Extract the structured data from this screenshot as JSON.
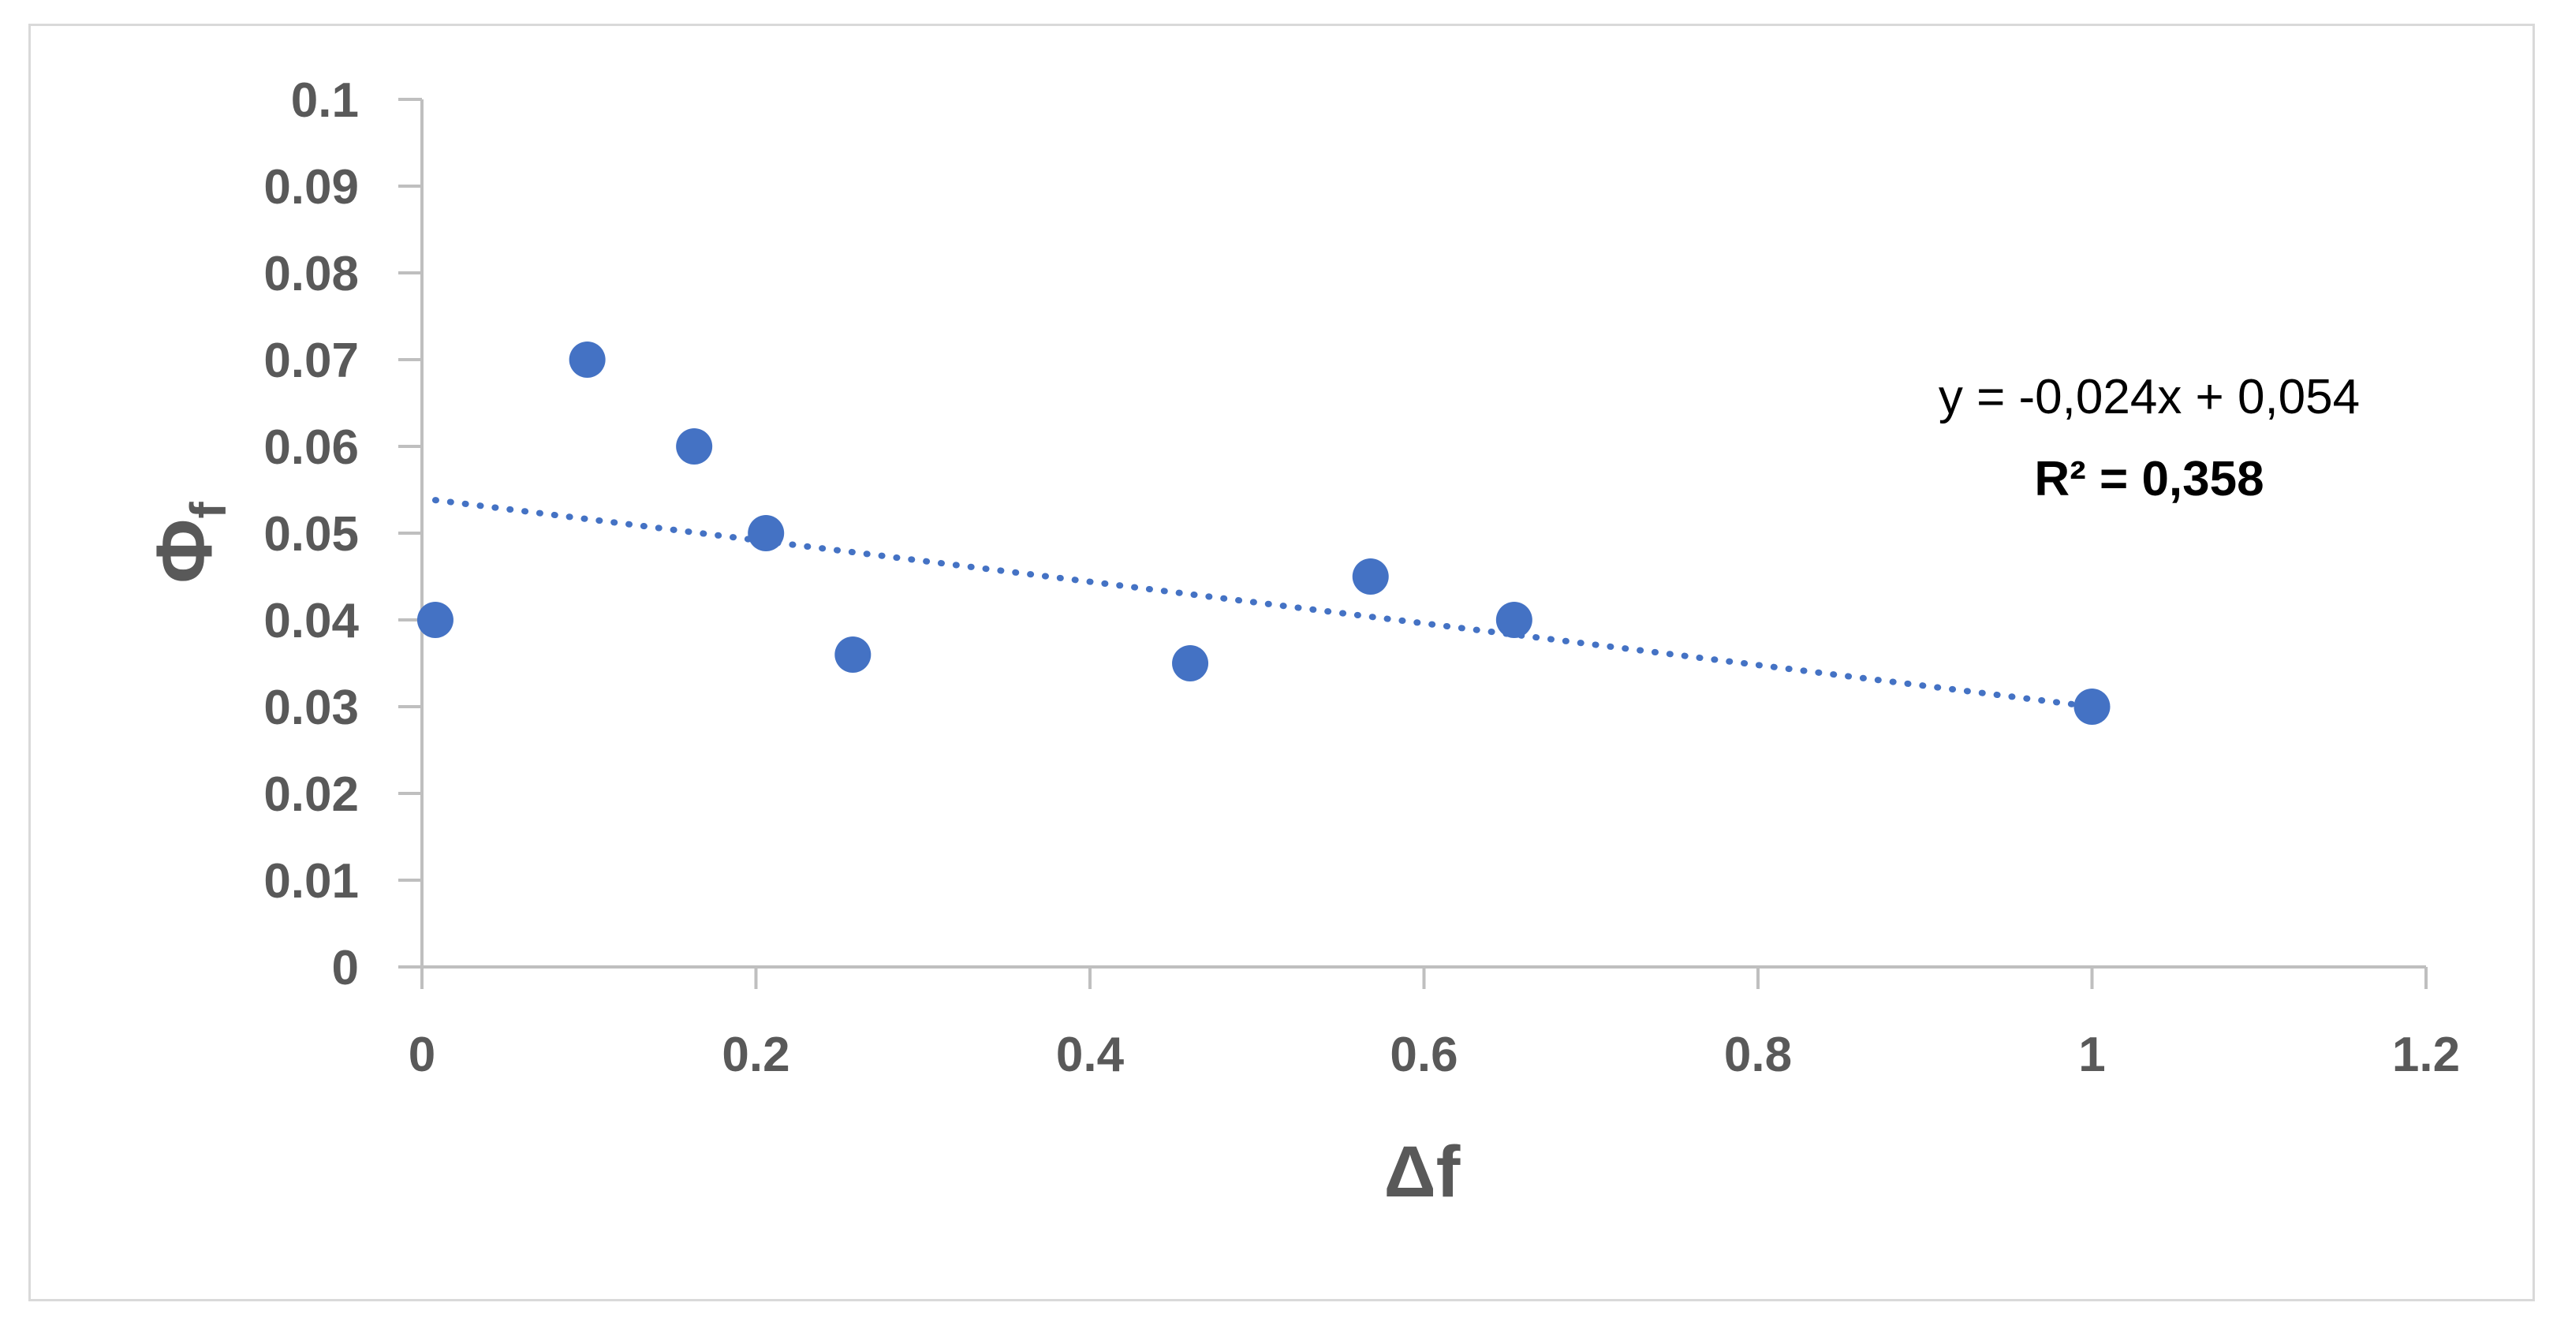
{
  "chart_data": {
    "type": "scatter",
    "title": "",
    "xlabel": "Δf",
    "ylabel_main": "Φ",
    "ylabel_sub": "f",
    "xlim": [
      0,
      1.2
    ],
    "ylim": [
      0,
      0.1
    ],
    "x_ticks": [
      0,
      0.2,
      0.4,
      0.6,
      0.8,
      1,
      1.2
    ],
    "x_tick_labels": [
      "0",
      "0.2",
      "0.4",
      "0.6",
      "0.8",
      "1",
      "1.2"
    ],
    "y_ticks": [
      0,
      0.01,
      0.02,
      0.03,
      0.04,
      0.05,
      0.06,
      0.07,
      0.08,
      0.09,
      0.1
    ],
    "y_tick_labels": [
      "0",
      "0.01",
      "0.02",
      "0.03",
      "0.04",
      "0.05",
      "0.06",
      "0.07",
      "0.08",
      "0.09",
      "0.1"
    ],
    "grid": false,
    "legend": "none",
    "series": [
      {
        "name": "data",
        "color": "#4472c4",
        "points": [
          {
            "x": 0.008,
            "y": 0.04
          },
          {
            "x": 0.099,
            "y": 0.07
          },
          {
            "x": 0.163,
            "y": 0.06
          },
          {
            "x": 0.206,
            "y": 0.05
          },
          {
            "x": 0.258,
            "y": 0.036
          },
          {
            "x": 0.46,
            "y": 0.035
          },
          {
            "x": 0.568,
            "y": 0.045
          },
          {
            "x": 0.654,
            "y": 0.04
          },
          {
            "x": 1.0,
            "y": 0.03
          }
        ]
      }
    ],
    "trendline": {
      "type": "linear",
      "slope": -0.024,
      "intercept": 0.054,
      "x_range": [
        0.008,
        1.0
      ],
      "color": "#4472c4",
      "style": "dotted",
      "equation_label": "y = -0,024x + 0,054",
      "r2_label": "R² = 0,358"
    },
    "colors": {
      "axis": "#bfbfbf",
      "text": "#595959",
      "marker": "#4472c4"
    }
  }
}
